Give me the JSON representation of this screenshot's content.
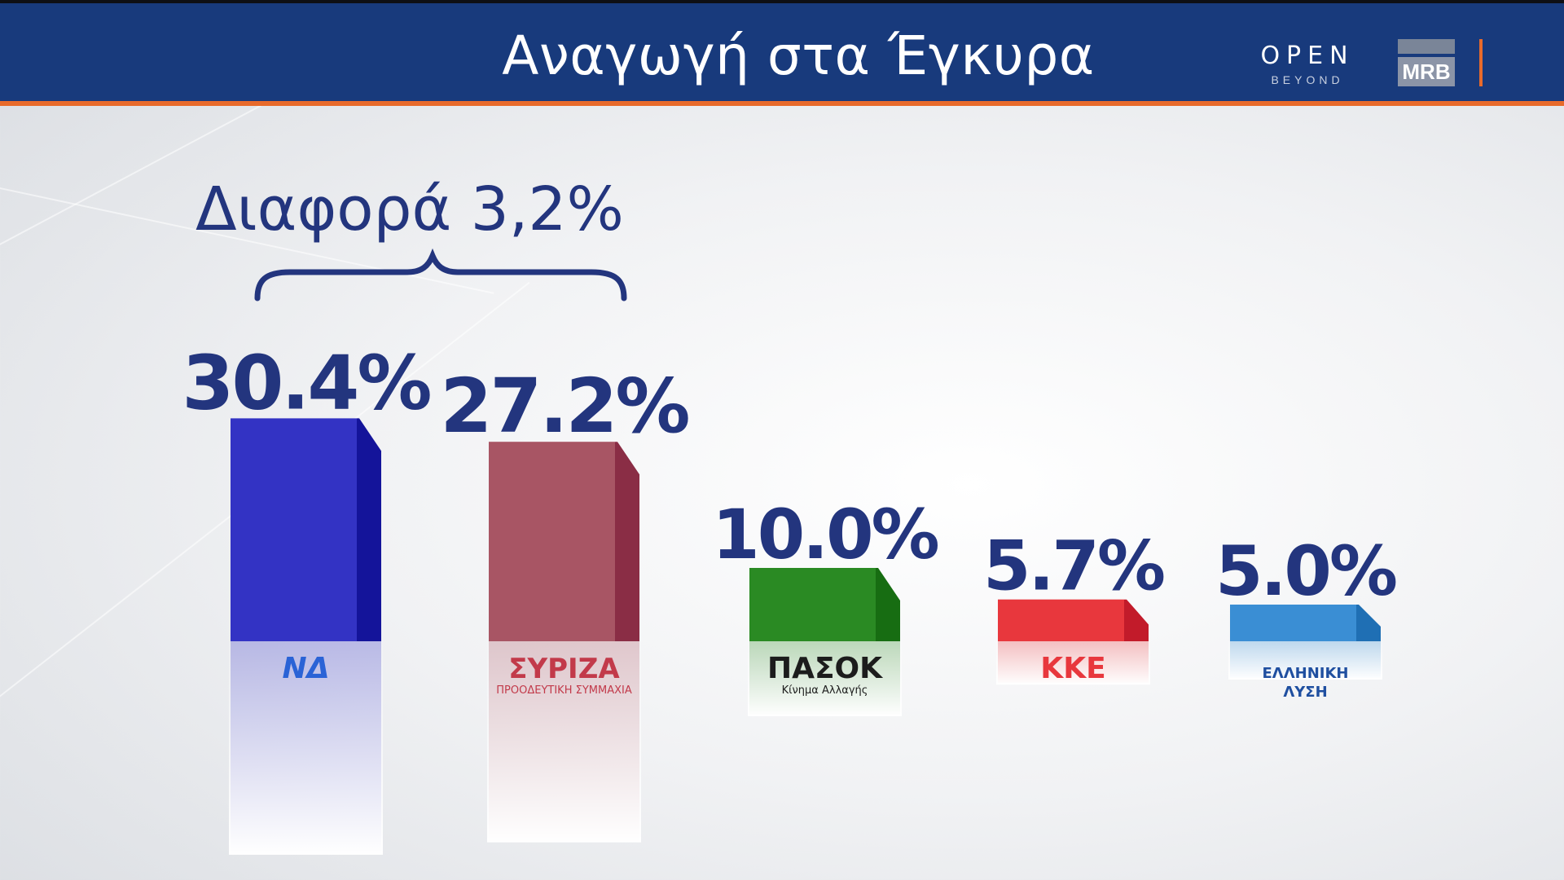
{
  "header": {
    "title": "Αναγωγή στα Έγκυρα",
    "channel_logo": "OPEN",
    "channel_sub": "BEYOND",
    "pollster_logo": "MRB"
  },
  "colors": {
    "header_bg": "#183a7c",
    "accent": "#e86a2b",
    "value_text": "#23357e"
  },
  "chart_data": {
    "type": "bar",
    "title": "Αναγωγή στα Έγκυρα",
    "annotation": "Διαφορά 3,2%",
    "unit": "%",
    "ylim": [
      0,
      32
    ],
    "categories": [
      "ΝΔ",
      "ΣΥΡΙΖΑ",
      "ΠΑΣΟΚ",
      "ΚΚΕ",
      "ΕΛΛΗΝΙΚΗ ΛΥΣΗ"
    ],
    "values": [
      30.4,
      27.2,
      10.0,
      5.7,
      5.0
    ],
    "value_labels": [
      "30.4%",
      "27.2%",
      "10.0%",
      "5.7%",
      "5.0%"
    ],
    "bar_colors": [
      "#3333c4",
      "#a85564",
      "#2a8a23",
      "#e8373d",
      "#3a8ed4"
    ],
    "bar_side_colors": [
      "#14149a",
      "#8a2d45",
      "#176d12",
      "#c21b2a",
      "#1f6fb4"
    ],
    "party_logos": [
      {
        "text": "ΝΔ",
        "color": "#2a63d6"
      },
      {
        "text": "ΣΥΡΙΖΑ",
        "sub": "ΠΡΟΟΔΕΥΤΙΚΗ ΣΥΜΜΑΧΙΑ",
        "color": "#c23a4a"
      },
      {
        "text": "ΠΑΣΟΚ",
        "sub": "Κίνημα Αλλαγής",
        "color": "#1c1c1c"
      },
      {
        "text": "ΚΚΕ",
        "color": "#e8373d"
      },
      {
        "text": "ΕΛΛΗΝΙΚΗ",
        "sub": "ΛΥΣΗ",
        "color": "#1f4fa0"
      }
    ]
  }
}
